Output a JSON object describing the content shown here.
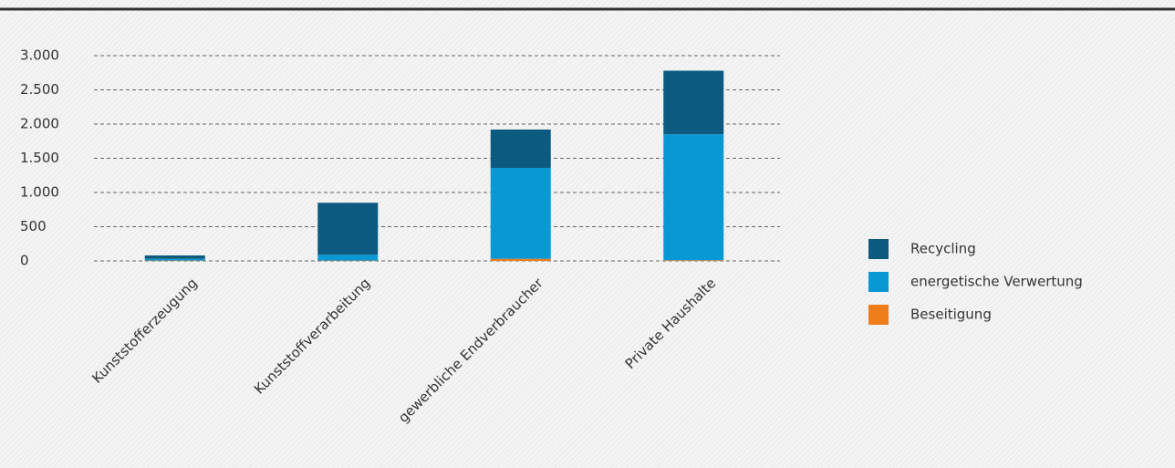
{
  "chart_data": {
    "type": "stacked_bar",
    "categories": [
      "Kunststofferzeugung",
      "Kunststoffverarbeitung",
      "gewerbliche Endverbraucher",
      "Private Haushalte"
    ],
    "series": [
      {
        "name": "Recycling",
        "color": "#0c5a80",
        "values": [
          50,
          760,
          560,
          930
        ]
      },
      {
        "name": "energetische Verwertung",
        "color": "#0898d3",
        "values": [
          25,
          85,
          1330,
          1840
        ]
      },
      {
        "name": "Beseitigung",
        "color": "#ef7d1a",
        "values": [
          5,
          5,
          30,
          10
        ]
      }
    ],
    "ylim": [
      0,
      3000
    ],
    "yticks": [
      0,
      500,
      {
        "value": 1000,
        "label": "1.000"
      },
      {
        "value": 1500,
        "label": "1.500"
      },
      {
        "value": 2000,
        "label": "2.000"
      },
      {
        "value": 2500,
        "label": "2.500"
      },
      {
        "value": 3000,
        "label": "3.000"
      }
    ],
    "grid": true
  }
}
